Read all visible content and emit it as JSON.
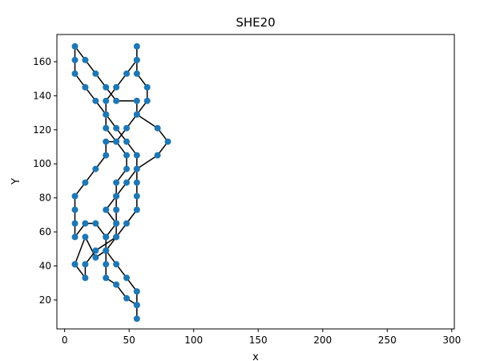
{
  "chart_data": {
    "type": "line",
    "title": "SHE20",
    "xlabel": "x",
    "ylabel": "Y",
    "xlim": [
      -6,
      302
    ],
    "ylim": [
      3,
      176
    ],
    "xticks": [
      0,
      50,
      100,
      150,
      200,
      250,
      300
    ],
    "yticks": [
      20,
      40,
      60,
      80,
      100,
      120,
      140,
      160
    ],
    "grid": false,
    "legend": "none",
    "colors": {
      "point": "#1f77b4",
      "route": "#000000"
    },
    "series": [
      {
        "x": [
          8,
          16,
          24,
          32,
          32,
          24,
          16,
          8,
          8,
          8,
          8,
          16,
          24,
          32,
          32,
          40,
          48,
          56,
          56,
          40,
          32,
          24,
          16,
          8,
          8,
          8,
          16,
          24,
          32,
          40,
          48,
          56,
          56,
          56,
          56,
          56,
          48,
          40,
          32,
          40,
          48,
          56,
          56,
          56,
          56,
          48,
          40,
          32,
          32,
          32,
          32,
          40,
          40,
          40,
          40,
          48,
          48,
          40,
          32,
          32,
          32,
          40,
          48,
          56,
          56,
          56,
          56,
          64,
          64,
          56,
          72,
          80,
          72,
          56,
          48,
          40,
          32,
          40,
          40,
          24,
          16,
          16,
          8
        ],
        "y": [
          41,
          57,
          45,
          49,
          57,
          65,
          65,
          57,
          65,
          73,
          81,
          89,
          97,
          105,
          113,
          113,
          121,
          129,
          137,
          137,
          145,
          153,
          161,
          169,
          161,
          153,
          145,
          137,
          129,
          121,
          113,
          105,
          97,
          89,
          81,
          73,
          65,
          57,
          49,
          41,
          33,
          25,
          17,
          9,
          17,
          21,
          29,
          33,
          41,
          49,
          57,
          65,
          73,
          81,
          89,
          97,
          105,
          113,
          121,
          129,
          137,
          145,
          153,
          161,
          169,
          161,
          153,
          145,
          137,
          129,
          121,
          113,
          105,
          97,
          89,
          81,
          73,
          65,
          57,
          49,
          41,
          33,
          41
        ],
        "name": ""
      }
    ]
  }
}
